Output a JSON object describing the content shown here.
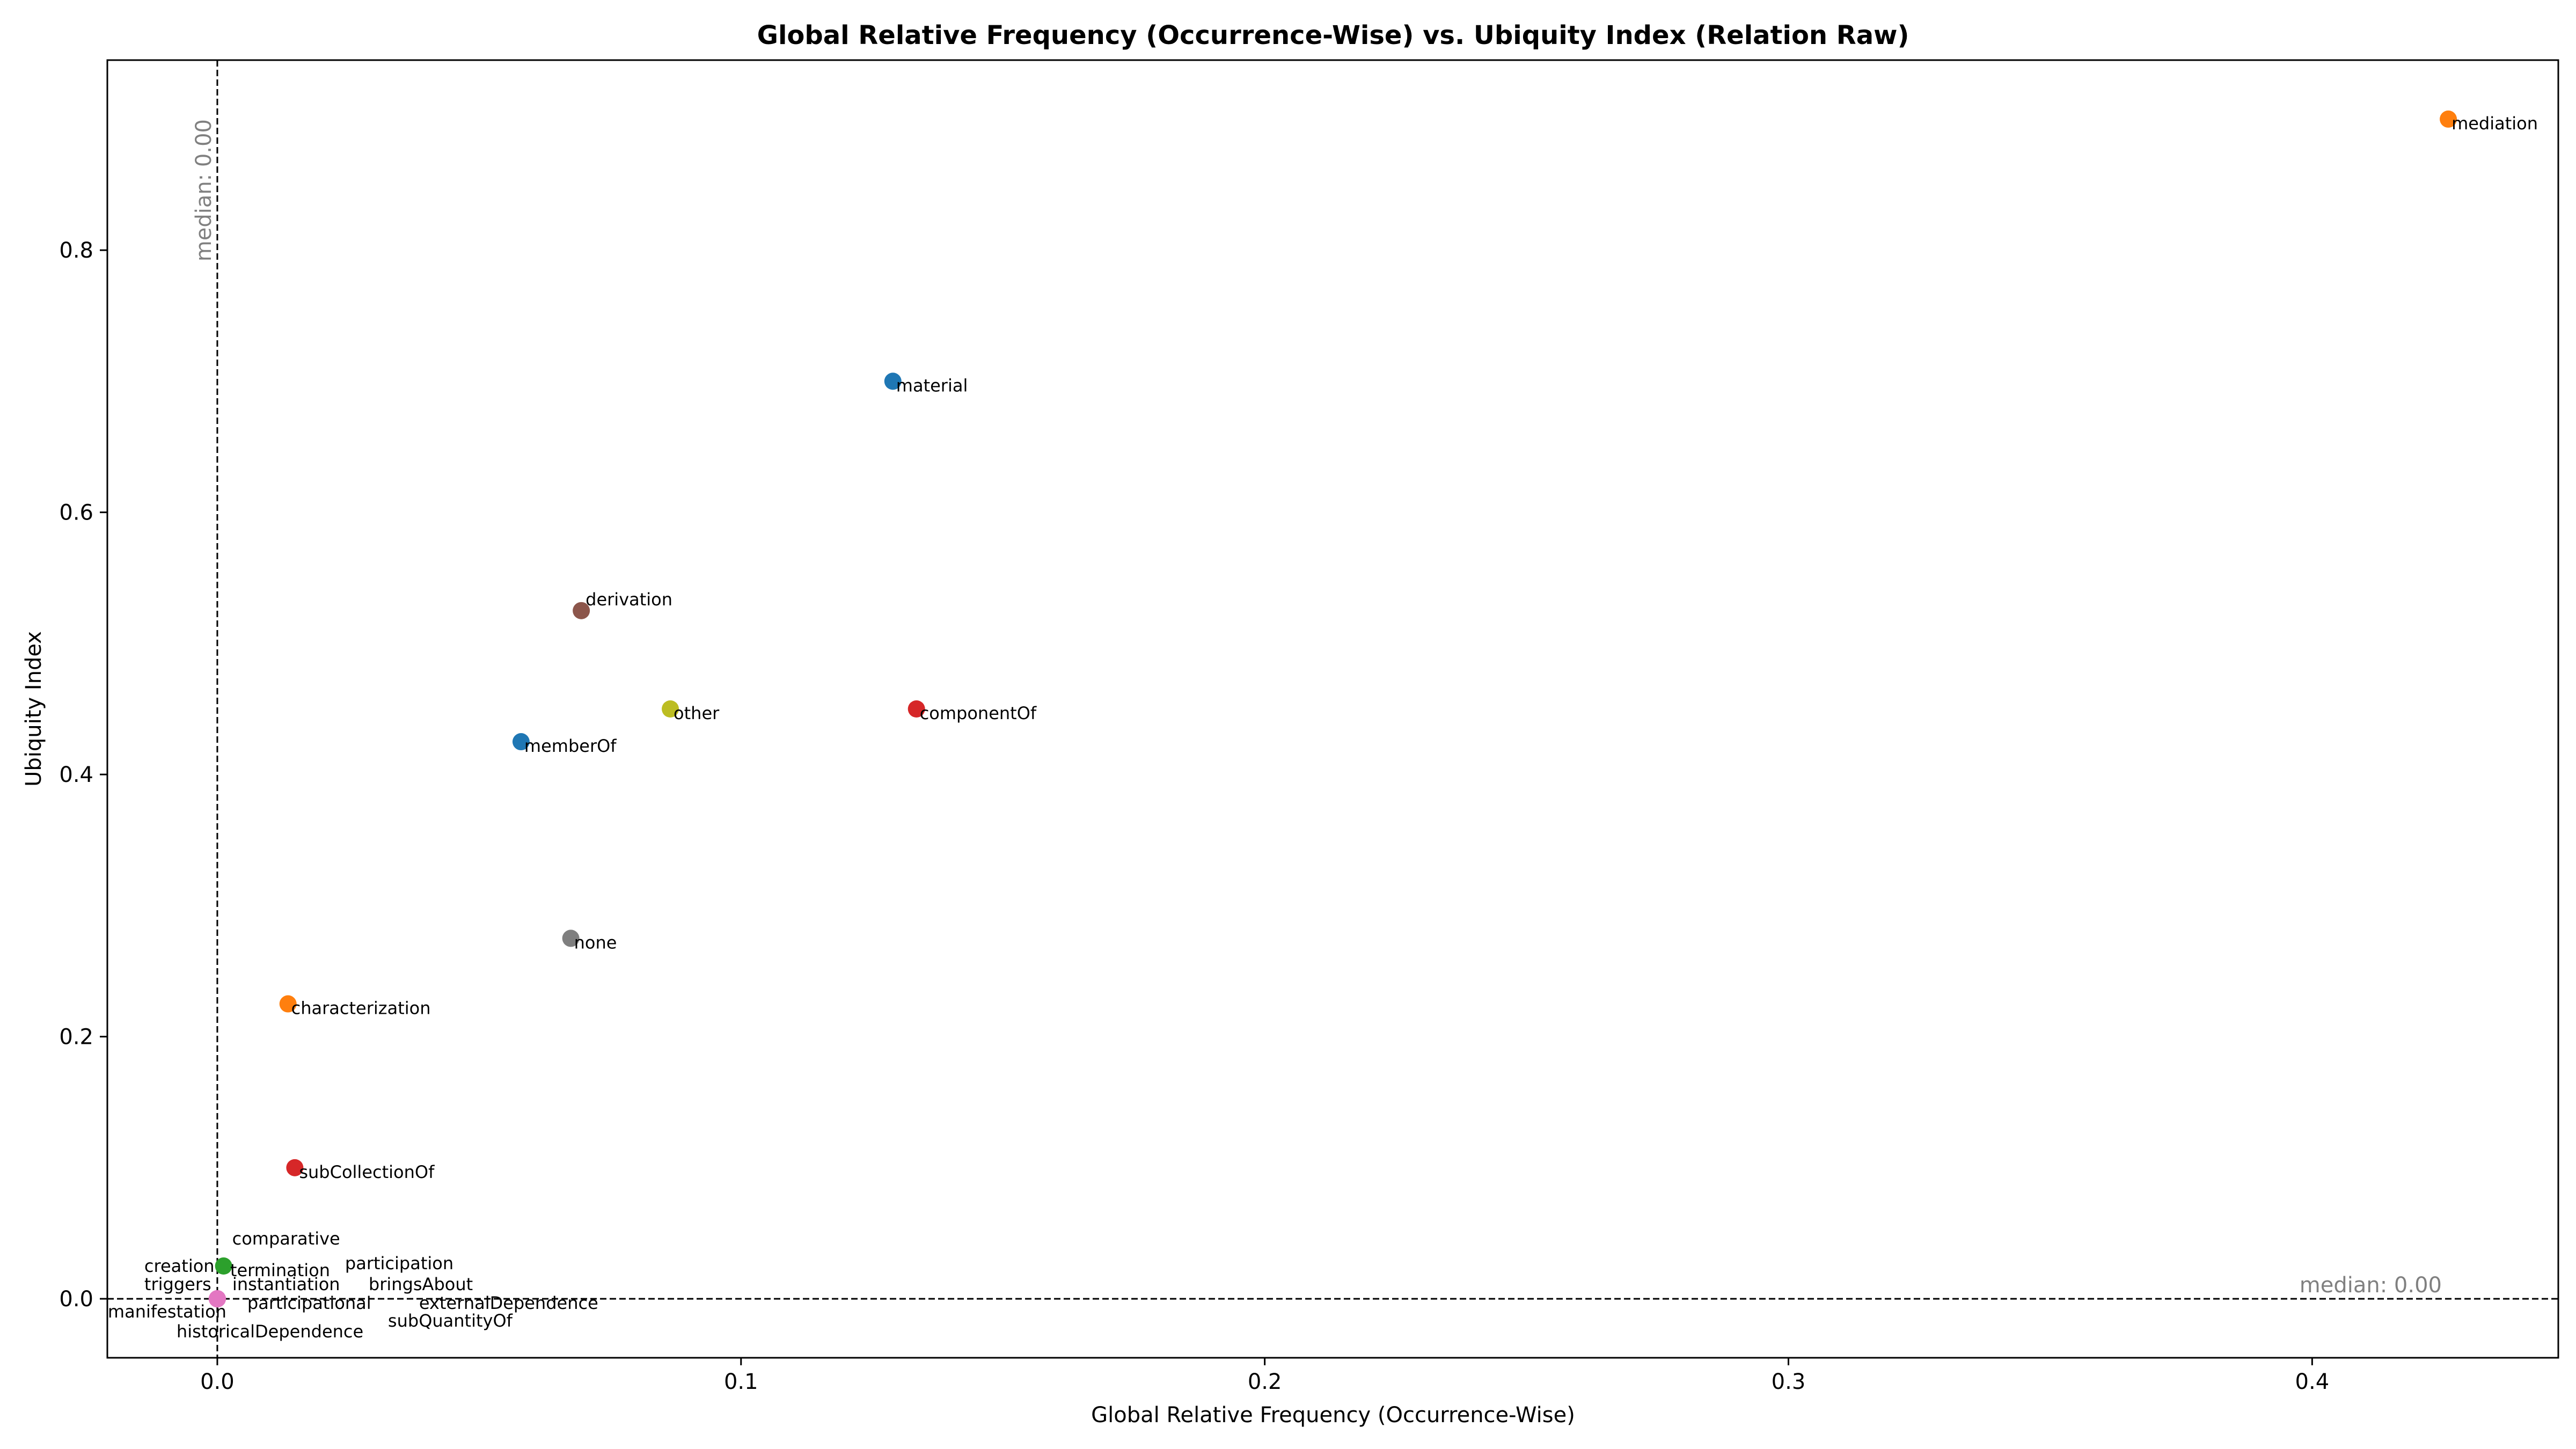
{
  "chart_data": {
    "type": "scatter",
    "title": "Global Relative Frequency (Occurrence-Wise) vs. Ubiquity Index (Relation Raw)",
    "xlabel": "Global Relative Frequency (Occurrence-Wise)",
    "ylabel": "Ubiquity Index",
    "xlim": [
      -0.021,
      0.447
    ],
    "ylim": [
      -0.045,
      0.945
    ],
    "xticks": [
      {
        "value": 0.0,
        "label": "0.0"
      },
      {
        "value": 0.1,
        "label": "0.1"
      },
      {
        "value": 0.2,
        "label": "0.2"
      },
      {
        "value": 0.3,
        "label": "0.3"
      },
      {
        "value": 0.4,
        "label": "0.4"
      }
    ],
    "yticks": [
      {
        "value": 0.0,
        "label": "0.0"
      },
      {
        "value": 0.2,
        "label": "0.2"
      },
      {
        "value": 0.4,
        "label": "0.4"
      },
      {
        "value": 0.6,
        "label": "0.6"
      },
      {
        "value": 0.8,
        "label": "0.8"
      }
    ],
    "grid": false,
    "legend": "none",
    "median_lines": {
      "x": {
        "value": 0.0,
        "label": "median: 0.00"
      },
      "y": {
        "value": 0.0,
        "label": "median: 0.00"
      }
    },
    "points": [
      {
        "label": "mediation",
        "x": 0.426,
        "y": 0.9,
        "color": "#ff7f0e"
      },
      {
        "label": "material",
        "x": 0.129,
        "y": 0.7,
        "color": "#1f77b4"
      },
      {
        "label": "derivation",
        "x": 0.0695,
        "y": 0.525,
        "color": "#8c564b"
      },
      {
        "label": "other",
        "x": 0.0865,
        "y": 0.45,
        "color": "#bcbd22"
      },
      {
        "label": "componentOf",
        "x": 0.1335,
        "y": 0.45,
        "color": "#d62728"
      },
      {
        "label": "memberOf",
        "x": 0.058,
        "y": 0.425,
        "color": "#1f77b4"
      },
      {
        "label": "none",
        "x": 0.0675,
        "y": 0.275,
        "color": "#7f7f7f"
      },
      {
        "label": "characterization",
        "x": 0.0135,
        "y": 0.225,
        "color": "#ff7f0e"
      },
      {
        "label": "subCollectionOf",
        "x": 0.0148,
        "y": 0.1,
        "color": "#d62728"
      },
      {
        "label": "comparative",
        "x": 0.0012,
        "y": 0.025,
        "color": "#2ca02c"
      },
      {
        "label": "termination",
        "x": 0.0,
        "y": 0.0,
        "color": "#e377c2"
      },
      {
        "label": "creation",
        "x": 0.0,
        "y": 0.0,
        "color": "#e377c2"
      },
      {
        "label": "triggers",
        "x": 0.0,
        "y": 0.0,
        "color": "#e377c2"
      },
      {
        "label": "instantiation",
        "x": 0.0,
        "y": 0.0,
        "color": "#e377c2"
      },
      {
        "label": "participation",
        "x": 0.0,
        "y": 0.0,
        "color": "#e377c2"
      },
      {
        "label": "bringsAbout",
        "x": 0.0,
        "y": 0.0,
        "color": "#e377c2"
      },
      {
        "label": "manifestation",
        "x": 0.0,
        "y": 0.0,
        "color": "#e377c2"
      },
      {
        "label": "participational",
        "x": 0.0,
        "y": 0.0,
        "color": "#e377c2"
      },
      {
        "label": "externalDependence",
        "x": 0.0,
        "y": 0.0,
        "color": "#e377c2"
      },
      {
        "label": "historicalDependence",
        "x": 0.0,
        "y": 0.0,
        "color": "#e377c2"
      },
      {
        "label": "subQuantityOf",
        "x": 0.0,
        "y": 0.0,
        "color": "#e377c2"
      }
    ]
  }
}
